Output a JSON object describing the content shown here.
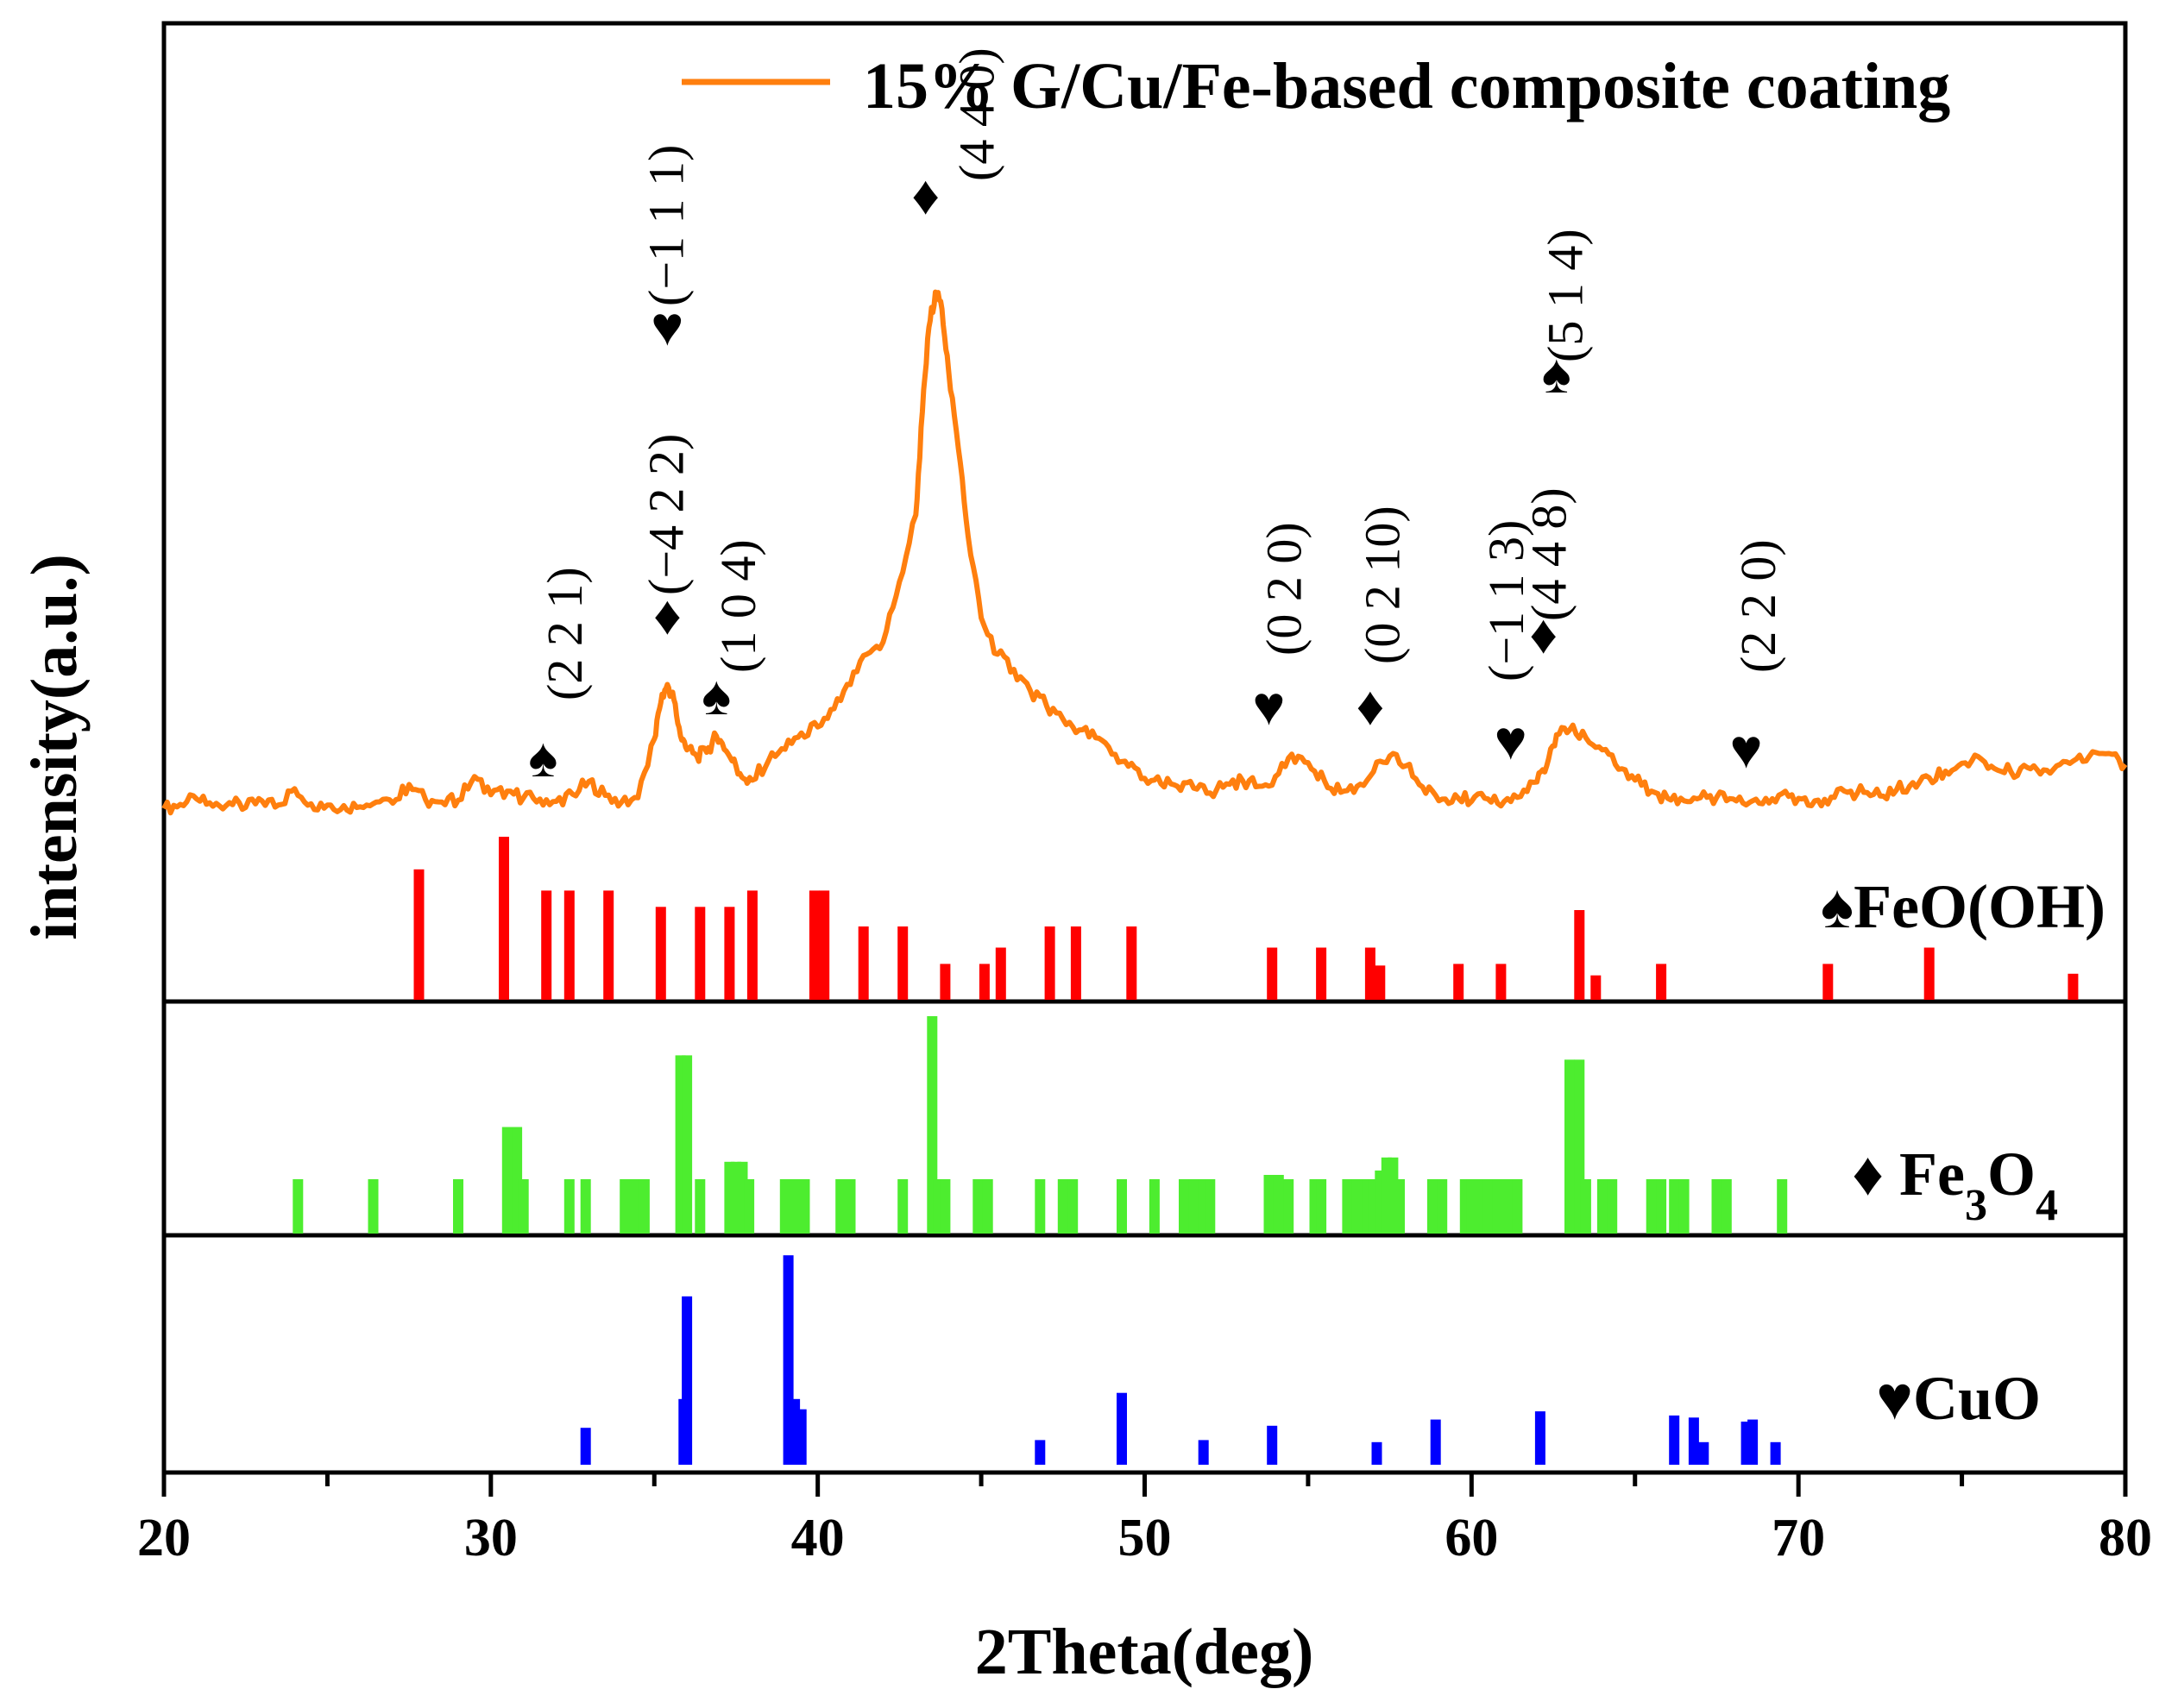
{
  "chart_data": {
    "type": "line",
    "title": "",
    "xlabel": "2Theta(deg)",
    "ylabel": "intensity(a.u.)",
    "xlim": [
      20,
      80
    ],
    "xticks": [
      "20",
      "30",
      "40",
      "50",
      "60",
      "70",
      "80"
    ],
    "ylim_main": [
      0,
      100
    ],
    "legend": {
      "label": "15% G/Cu/Fe-based composite coating",
      "color": "#FF7F0E",
      "position": "top-right"
    },
    "series": [
      {
        "name": "15% G/Cu/Fe-based composite coating",
        "color": "#FF7F0E",
        "x": [
          20,
          20.5,
          21,
          21.5,
          22,
          22.5,
          23,
          23.5,
          24,
          24.5,
          25,
          25.5,
          26,
          26.5,
          27,
          27.5,
          28,
          28.5,
          29,
          29.5,
          30,
          30.5,
          31,
          31.5,
          32,
          32.5,
          33,
          33.5,
          34,
          34.5,
          35,
          35.2,
          35.4,
          35.6,
          35.8,
          36,
          36.3,
          36.6,
          36.9,
          37.2,
          37.5,
          37.8,
          38,
          38.5,
          39,
          39.5,
          40,
          40.5,
          41,
          41.5,
          42,
          42.5,
          43,
          43.2,
          43.4,
          43.6,
          43.8,
          44,
          44.3,
          44.6,
          45,
          45.5,
          46,
          46.5,
          47,
          47.5,
          48,
          48.5,
          49,
          49.5,
          50,
          50.5,
          51,
          51.5,
          52,
          52.5,
          53,
          53.5,
          54,
          54.5,
          55,
          55.5,
          56,
          56.5,
          57,
          57.5,
          58,
          58.5,
          59,
          59.5,
          60,
          60.5,
          61,
          61.5,
          62,
          62.3,
          62.6,
          63,
          63.5,
          64,
          64.5,
          65,
          65.5,
          66,
          66.5,
          67,
          67.5,
          68,
          68.5,
          69,
          69.5,
          70,
          70.5,
          71,
          71.5,
          72,
          72.5,
          73,
          73.5,
          74,
          74.5,
          75,
          75.5,
          76,
          76.5,
          77,
          77.5,
          78,
          78.5,
          79,
          79.5,
          80
        ],
        "y": [
          3.5,
          4.2,
          5.1,
          3.9,
          4.5,
          3.7,
          4.8,
          4.1,
          6.8,
          4.3,
          4.1,
          4,
          3.8,
          4.6,
          4.4,
          7.5,
          5,
          4.6,
          4.9,
          8.8,
          5.8,
          6.4,
          5.3,
          5.1,
          4.7,
          5.9,
          8,
          5.7,
          4.6,
          5.3,
          15,
          21,
          24,
          21.5,
          15.5,
          13.2,
          12.2,
          12.8,
          15.5,
          13,
          10.5,
          8.3,
          8.2,
          11.5,
          13.3,
          16,
          17,
          20,
          24,
          29,
          31,
          41,
          52,
          69,
          83,
          88.8,
          86,
          76,
          63,
          48.5,
          35,
          29,
          26.5,
          23,
          20.5,
          18.3,
          16.5,
          15.2,
          12.5,
          10.5,
          8.5,
          7.6,
          7.2,
          6.9,
          6.1,
          7.6,
          8.1,
          7.2,
          8.8,
          12.5,
          11.1,
          8.1,
          6.2,
          7.2,
          9.6,
          12.2,
          10.6,
          7.1,
          4.8,
          5.8,
          4.7,
          5.1,
          4.7,
          5.5,
          7.9,
          10.6,
          15.7,
          16.5,
          15.2,
          13.2,
          10,
          8.2,
          6.4,
          5.2,
          4.8,
          5.3,
          5.4,
          5.1,
          4.5,
          5.2,
          6,
          5.2,
          4.8,
          5.4,
          6.2,
          6.2,
          5.6,
          6.6,
          7.8,
          8.6,
          9.7,
          11,
          12.1,
          10.1,
          9.6,
          10.3,
          9.9,
          10.8,
          11.7,
          12.9,
          12.6,
          10.8
        ]
      }
    ],
    "reference_panels": [
      {
        "name": "FeO(OH)",
        "symbol": "♠",
        "color": "#FF0000",
        "ylim": [
          0,
          100
        ],
        "positions": [
          27.8,
          30.4,
          31.7,
          32.4,
          33.6,
          35.2,
          36.4,
          37.3,
          38,
          39.9,
          40.2,
          41.4,
          42.6,
          43.9,
          45.1,
          45.6,
          47.1,
          47.9,
          49.6,
          53.9,
          55.4,
          56.9,
          57.2,
          59.6,
          60.9,
          63.3,
          63.8,
          65.8,
          70.9,
          74,
          78.4
        ],
        "intensities": [
          80,
          100,
          67,
          67,
          67,
          57,
          57,
          57,
          67,
          67,
          67,
          45,
          45,
          22,
          22,
          32,
          45,
          45,
          45,
          32,
          32,
          32,
          21,
          22,
          22,
          55,
          15,
          22,
          22,
          32,
          16
        ]
      },
      {
        "name": "Fe3O4",
        "symbol": "♦",
        "color": "#4DED2F",
        "ylim": [
          0,
          100
        ],
        "positions": [
          24.1,
          26.4,
          29,
          30.5,
          30.8,
          31,
          32.4,
          32.9,
          34.1,
          34.4,
          34.7,
          35.8,
          36,
          36.4,
          37.3,
          37.5,
          37.7,
          37.9,
          39,
          39.3,
          39.6,
          40.7,
          41,
          42.6,
          43.5,
          43.7,
          43.9,
          44.9,
          45.2,
          46.8,
          47.5,
          47.8,
          49.3,
          50.3,
          51.2,
          51.5,
          51.8,
          52,
          53.8,
          54.1,
          54.4,
          55.2,
          55.4,
          56.2,
          56.5,
          56.8,
          57,
          57.2,
          57.4,
          57.6,
          57.8,
          58.8,
          59.1,
          59.8,
          60,
          60.3,
          60.5,
          60.8,
          61.1,
          61.4,
          63,
          63.3,
          63.5,
          64,
          64.3,
          65.5,
          65.8,
          66.2,
          66.5,
          67.5,
          67.8,
          69.5
        ],
        "intensities": [
          25,
          25,
          25,
          49,
          49,
          25,
          25,
          25,
          25,
          25,
          25,
          82,
          82,
          25,
          33,
          33,
          33,
          25,
          25,
          25,
          25,
          25,
          25,
          25,
          100,
          25,
          25,
          25,
          25,
          25,
          25,
          25,
          25,
          25,
          25,
          25,
          25,
          25,
          27,
          27,
          25,
          25,
          25,
          25,
          25,
          25,
          25,
          29,
          35,
          35,
          25,
          25,
          25,
          25,
          25,
          25,
          25,
          25,
          25,
          25,
          80,
          80,
          25,
          25,
          25,
          25,
          25,
          25,
          25,
          25,
          25,
          25
        ]
      },
      {
        "name": "CuO",
        "symbol": "♥",
        "color": "#0000FF",
        "ylim": [
          0,
          100
        ],
        "positions": [
          32.9,
          35.9,
          36,
          39.1,
          39.3,
          39.5,
          46.8,
          49.3,
          51.8,
          53.9,
          57.1,
          58.9,
          62.1,
          66.2,
          66.8,
          67.1,
          68.4,
          68.6,
          69.3
        ],
        "intensities": [
          18,
          32,
          82,
          102,
          32,
          27,
          12,
          35,
          12,
          19,
          11,
          22,
          26,
          24,
          23,
          11,
          21,
          22,
          11
        ]
      }
    ],
    "peak_annotations": [
      {
        "x": 31.6,
        "symbol": "♠",
        "hkl": "(2 2 1)"
      },
      {
        "x": 35.4,
        "symbol": "♦",
        "hkl": "(−4 2 2)"
      },
      {
        "x": 35.4,
        "symbol": "♥",
        "hkl": "(−1 1 1)"
      },
      {
        "x": 36.9,
        "symbol": "♠",
        "hkl": "(1 0 4)"
      },
      {
        "x": 43.3,
        "symbol": "♦",
        "hkl": "(4 4 0)"
      },
      {
        "x": 53.8,
        "symbol": "♥",
        "hkl": "(0 2 0)"
      },
      {
        "x": 56.9,
        "symbol": "♦",
        "hkl": "(0 2 10)"
      },
      {
        "x": 61.2,
        "symbol": "♥",
        "hkl": "(−1 1 3)"
      },
      {
        "x": 62.2,
        "symbol": "♦",
        "hkl": "(4 4 8)"
      },
      {
        "x": 62.6,
        "symbol": "♠",
        "hkl": "(5 1 4)"
      },
      {
        "x": 68.4,
        "symbol": "♥",
        "hkl": "(2 2 0)"
      }
    ]
  }
}
